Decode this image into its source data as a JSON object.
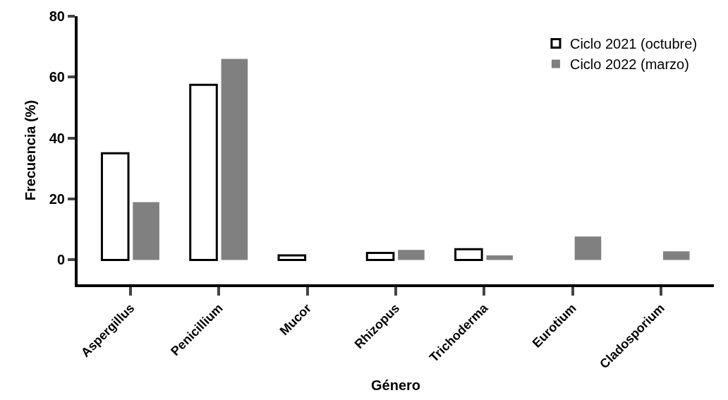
{
  "chart_data": {
    "type": "bar",
    "xlabel": "Género",
    "ylabel": "Frecuencia (%)",
    "categories": [
      "Aspergillus",
      "Penicillium",
      "Mucor",
      "Rhizopus",
      "Trichoderma",
      "Eurotium",
      "Cladosporium"
    ],
    "series": [
      {
        "name": "Ciclo 2021 (octubre)",
        "color": "#ffffff",
        "values": [
          35,
          57.5,
          1.5,
          2.3,
          3.5,
          null,
          null
        ]
      },
      {
        "name": "Ciclo 2022 (marzo)",
        "color": "#808080",
        "values": [
          19,
          66,
          null,
          3.3,
          1.5,
          7.7,
          2.8
        ]
      }
    ],
    "ylim": [
      -8,
      80
    ],
    "yticks": [
      0,
      20,
      40,
      60,
      80
    ],
    "legend": "top right"
  }
}
